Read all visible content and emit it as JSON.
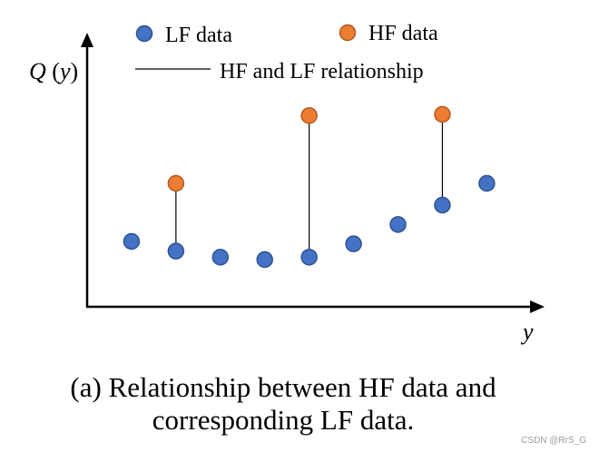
{
  "legend": {
    "lf_label": "LF data",
    "hf_label": "HF data",
    "line_label": "HF and LF relationship"
  },
  "axes": {
    "y_label_q": "Q",
    "y_label_paren_open": "(",
    "y_label_var": "y",
    "y_label_paren_close": ")",
    "x_label": "y"
  },
  "caption": {
    "line1": "(a) Relationship between HF data and",
    "line2": "corresponding LF data."
  },
  "watermark": "CSDN @RrS_G",
  "colors": {
    "lf_fill": "#4472C4",
    "lf_stroke": "#2F528F",
    "hf_fill": "#ED7D31",
    "hf_stroke": "#AE5A21",
    "axis": "#000000"
  },
  "chart_data": {
    "type": "scatter",
    "lf_series": {
      "name": "LF data",
      "x": [
        1,
        2,
        3,
        4,
        5,
        6,
        7,
        8,
        9
      ],
      "y": [
        2.7,
        2.3,
        2.05,
        1.95,
        2.05,
        2.6,
        3.4,
        4.2,
        5.1
      ]
    },
    "hf_series": {
      "name": "HF data",
      "x": [
        2,
        5,
        8
      ],
      "y": [
        5.1,
        7.9,
        7.95
      ]
    },
    "xlim": [
      0,
      10.3
    ],
    "ylim": [
      0,
      10.8
    ]
  }
}
